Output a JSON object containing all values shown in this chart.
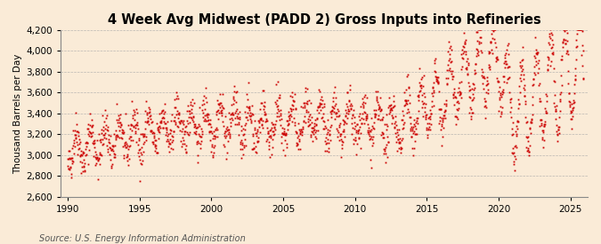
{
  "title": "4 Week Avg Midwest (PADD 2) Gross Inputs into Refineries",
  "ylabel": "Thousand Barrels per Day",
  "source_text": "Source: U.S. Energy Information Administration",
  "background_color": "#faebd7",
  "plot_background_color": "#faebd7",
  "dot_color": "#cc0000",
  "grid_color": "#aaaaaa",
  "ylim": [
    2600,
    4200
  ],
  "yticks": [
    2600,
    2800,
    3000,
    3200,
    3400,
    3600,
    3800,
    4000,
    4200
  ],
  "xlim_start": 1989.5,
  "xlim_end": 2026.2,
  "xticks": [
    1990,
    1995,
    2000,
    2005,
    2010,
    2015,
    2020,
    2025
  ],
  "title_fontsize": 10.5,
  "ylabel_fontsize": 7.5,
  "tick_fontsize": 7.5,
  "source_fontsize": 7,
  "marker_size": 1.3,
  "seed": 42,
  "n_points": 1870,
  "year_start": 1990.0,
  "year_end": 2025.9
}
